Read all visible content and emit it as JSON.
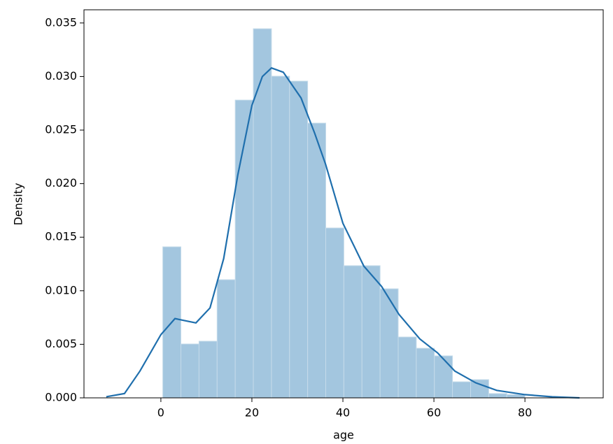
{
  "chart_data": {
    "type": "histogram",
    "x_label": "age",
    "y_label": "Density",
    "bins": [
      0.42,
      4.4,
      8.38,
      12.36,
      16.34,
      20.32,
      24.3,
      28.27,
      32.25,
      36.23,
      40.21,
      44.19,
      48.17,
      52.15,
      56.13,
      60.1,
      64.08,
      68.06,
      72.04,
      76.02,
      80
    ],
    "values": [
      0.0141,
      0.00503,
      0.00529,
      0.01103,
      0.0278,
      0.03446,
      0.03003,
      0.02957,
      0.02565,
      0.01586,
      0.01234,
      0.01234,
      0.01018,
      0.00568,
      0.00463,
      0.00392,
      0.0015,
      0.0017,
      0.0004,
      0.0003
    ],
    "color": "#a3c6df",
    "kde": {
      "color": "#1f6fad",
      "x": [
        -12,
        -8,
        -4.6,
        0,
        3.1,
        7.7,
        10.8,
        13.8,
        16.9,
        20,
        22.3,
        24.3,
        26.9,
        30.8,
        33.8,
        36.2,
        40,
        44.6,
        48.5,
        52.3,
        56.9,
        60.8,
        64.6,
        69.2,
        73.8,
        80,
        86,
        92
      ],
      "values": [
        0.0001,
        0.0004,
        0.0025,
        0.0059,
        0.0074,
        0.007,
        0.0084,
        0.013,
        0.0208,
        0.0273,
        0.03,
        0.0308,
        0.0304,
        0.028,
        0.0247,
        0.0218,
        0.0163,
        0.0123,
        0.0104,
        0.0078,
        0.0055,
        0.0042,
        0.0025,
        0.0014,
        0.0007,
        0.0003,
        0.0001,
        0
      ]
    },
    "xlim": [
      -16.9,
      97.2
    ],
    "ylim": [
      0,
      0.03623
    ],
    "xticks": [
      0,
      20,
      40,
      60,
      80
    ],
    "yticks": [
      {
        "value": 0,
        "label": "0.000"
      },
      {
        "value": 0.005,
        "label": "0.005"
      },
      {
        "value": 0.01,
        "label": "0.010"
      },
      {
        "value": 0.015,
        "label": "0.015"
      },
      {
        "value": 0.02,
        "label": "0.020"
      },
      {
        "value": 0.025,
        "label": "0.025"
      },
      {
        "value": 0.03,
        "label": "0.030"
      },
      {
        "value": 0.035,
        "label": "0.035"
      }
    ]
  }
}
